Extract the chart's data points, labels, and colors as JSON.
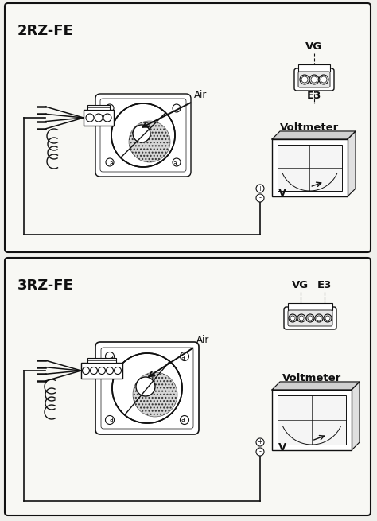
{
  "bg_color": "#f0f0ec",
  "line_color": "#111111",
  "title1": "2RZ-FE",
  "title2": "3RZ-FE",
  "label_VG": "VG",
  "label_E3": "E3",
  "label_Air": "Air",
  "label_Voltmeter": "Voltmeter",
  "label_V": "V",
  "title_fontsize": 13,
  "label_fontsize": 8.5,
  "small_fontsize": 7,
  "panel_bg": "#f8f8f4"
}
